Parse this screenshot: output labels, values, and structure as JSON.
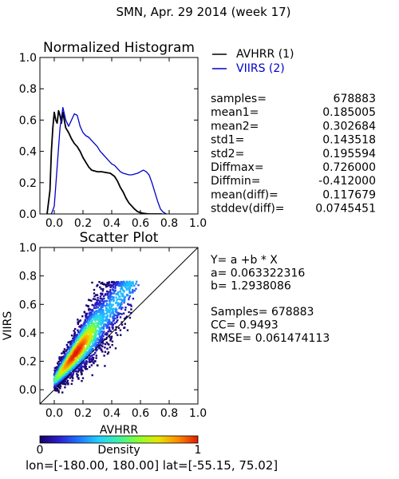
{
  "figure": {
    "title": "SMN,  Apr. 29 2014 (week 17)",
    "footer": "lon=[-180.00, 180.00] lat=[-55.15, 75.02]"
  },
  "colors": {
    "avhrr_line": "#000000",
    "viirs_line": "#0000cc",
    "density_colormap": [
      "#1a0066",
      "#2a20d0",
      "#1e78ff",
      "#22d2ff",
      "#3ef0a0",
      "#8cff2e",
      "#e6e600",
      "#ff8a00",
      "#e11a00"
    ]
  },
  "chart_data": [
    {
      "type": "line",
      "title": "Normalized Histogram",
      "xlim": [
        -0.1,
        1.0
      ],
      "ylim": [
        0.0,
        1.0
      ],
      "xticks": [
        "0.0",
        "0.2",
        "0.4",
        "0.6",
        "0.8",
        "1.0"
      ],
      "yticks": [
        "0.0",
        "0.2",
        "0.4",
        "0.6",
        "0.8",
        "1.0"
      ],
      "legend_position": "right",
      "series": [
        {
          "name": "AVHRR (1)",
          "color": "#000000",
          "x": [
            -0.05,
            -0.03,
            -0.02,
            -0.01,
            0.0,
            0.01,
            0.02,
            0.03,
            0.04,
            0.05,
            0.06,
            0.07,
            0.08,
            0.1,
            0.12,
            0.14,
            0.16,
            0.18,
            0.2,
            0.22,
            0.24,
            0.26,
            0.28,
            0.3,
            0.33,
            0.36,
            0.39,
            0.42,
            0.44,
            0.46,
            0.48,
            0.5,
            0.52,
            0.54,
            0.56,
            0.58,
            0.6,
            0.62,
            0.64,
            0.66,
            0.7,
            0.75
          ],
          "y": [
            0.0,
            0.15,
            0.4,
            0.55,
            0.65,
            0.6,
            0.58,
            0.66,
            0.63,
            0.58,
            0.65,
            0.6,
            0.55,
            0.52,
            0.48,
            0.45,
            0.43,
            0.4,
            0.36,
            0.33,
            0.3,
            0.28,
            0.275,
            0.27,
            0.27,
            0.265,
            0.26,
            0.24,
            0.21,
            0.17,
            0.14,
            0.1,
            0.07,
            0.05,
            0.03,
            0.015,
            0.008,
            0.004,
            0.002,
            0.0,
            0.0,
            0.0
          ]
        },
        {
          "name": "VIIRS (2)",
          "color": "#0000cc",
          "x": [
            -0.05,
            -0.02,
            0.0,
            0.02,
            0.04,
            0.06,
            0.08,
            0.1,
            0.12,
            0.14,
            0.16,
            0.18,
            0.2,
            0.22,
            0.24,
            0.26,
            0.28,
            0.3,
            0.32,
            0.34,
            0.36,
            0.38,
            0.4,
            0.42,
            0.44,
            0.46,
            0.48,
            0.5,
            0.52,
            0.54,
            0.56,
            0.58,
            0.6,
            0.62,
            0.64,
            0.66,
            0.68,
            0.7,
            0.72,
            0.74,
            0.76,
            0.78
          ],
          "y": [
            0.0,
            0.0,
            0.05,
            0.3,
            0.55,
            0.68,
            0.6,
            0.56,
            0.6,
            0.64,
            0.63,
            0.56,
            0.52,
            0.5,
            0.49,
            0.47,
            0.45,
            0.43,
            0.4,
            0.38,
            0.36,
            0.34,
            0.32,
            0.31,
            0.29,
            0.27,
            0.26,
            0.255,
            0.25,
            0.25,
            0.255,
            0.26,
            0.27,
            0.28,
            0.27,
            0.25,
            0.2,
            0.14,
            0.08,
            0.03,
            0.01,
            0.0
          ]
        }
      ],
      "stats": [
        {
          "label": "samples=",
          "value": "678883"
        },
        {
          "label": "mean1=",
          "value": "0.185005"
        },
        {
          "label": "mean2=",
          "value": "0.302684"
        },
        {
          "label": "std1=",
          "value": "0.143518"
        },
        {
          "label": "std2=",
          "value": "0.195594"
        },
        {
          "label": "Diffmax=",
          "value": "0.726000"
        },
        {
          "label": "Diffmin=",
          "value": "-0.412000"
        },
        {
          "label": "mean(diff)=",
          "value": "0.117679"
        },
        {
          "label": "stddev(diff)=",
          "value": "0.0745451"
        }
      ]
    },
    {
      "type": "scatter",
      "title": "Scatter Plot",
      "xlabel": "AVHRR",
      "ylabel": "VIIRS",
      "xlim": [
        -0.1,
        1.0
      ],
      "ylim": [
        -0.1,
        1.0
      ],
      "xticks": [
        "0.0",
        "0.2",
        "0.4",
        "0.6",
        "0.8",
        "1.0"
      ],
      "yticks": [
        "0.0",
        "0.2",
        "0.4",
        "0.6",
        "0.8",
        "1.0"
      ],
      "fit": {
        "a": 0.063322316,
        "b": 1.2938086
      },
      "one_to_one_line": true,
      "density_colorbar": {
        "label": "Density",
        "min_label": "0",
        "max_label": "1"
      },
      "annotations": [
        "Y= a +b * X",
        "a= 0.063322316",
        "b= 1.2938086",
        "",
        "Samples= 678883",
        "CC=  0.9493",
        "RMSE= 0.061474113"
      ]
    }
  ]
}
